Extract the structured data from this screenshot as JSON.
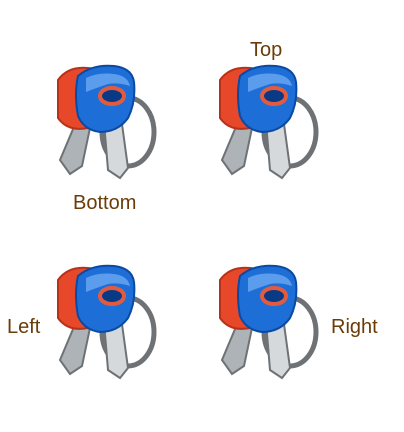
{
  "labels": {
    "top": "Top",
    "bottom": "Bottom",
    "left": "Left",
    "right": "Right"
  },
  "icons": {
    "name": "keys-icon",
    "colors": {
      "red_key": "#e8482a",
      "blue_key": "#1e6ed8",
      "metal": "#bfc4c8",
      "ring": "#6e7275"
    }
  },
  "colors": {
    "label_text": "#6a3c07",
    "background": "#ffffff"
  }
}
